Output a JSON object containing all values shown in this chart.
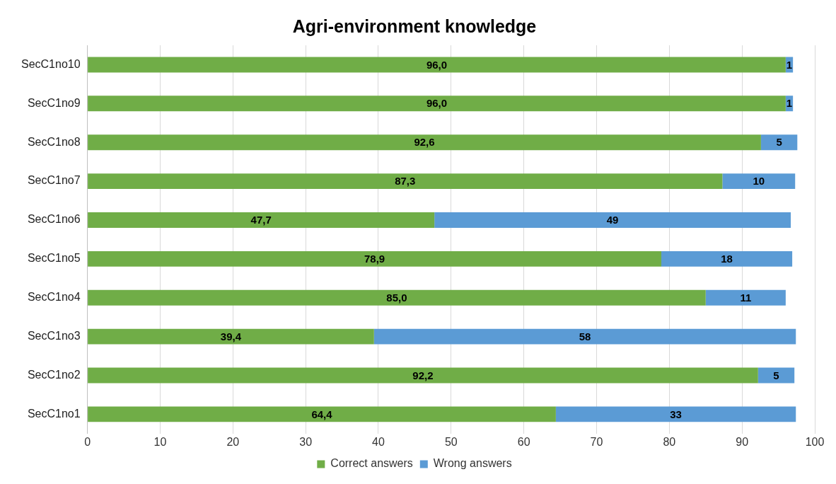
{
  "chart_data": {
    "type": "bar",
    "orientation": "horizontal",
    "stacked": true,
    "title": "Agri-environment knowledge",
    "categories": [
      "SecC1no10",
      "SecC1no9",
      "SecC1no8",
      "SecC1no7",
      "SecC1no6",
      "SecC1no5",
      "SecC1no4",
      "SecC1no3",
      "SecC1no2",
      "SecC1no1"
    ],
    "series": [
      {
        "name": "Correct answers",
        "color": "#70ad47",
        "values": [
          96.0,
          96.0,
          92.6,
          87.3,
          47.7,
          78.9,
          85.0,
          39.4,
          92.2,
          64.4
        ],
        "value_labels": [
          "96,0",
          "96,0",
          "92,6",
          "87,3",
          "47,7",
          "78,9",
          "85,0",
          "39,4",
          "92,2",
          "64,4"
        ]
      },
      {
        "name": "Wrong answers",
        "color": "#5b9bd5",
        "values": [
          1,
          1,
          5,
          10,
          49,
          18,
          11,
          58,
          5,
          33
        ],
        "value_labels": [
          "1",
          "1",
          "5",
          "10",
          "49",
          "18",
          "11",
          "58",
          "5",
          "33"
        ]
      }
    ],
    "xlim": [
      0,
      100
    ],
    "xticks": [
      0,
      10,
      20,
      30,
      40,
      50,
      60,
      70,
      80,
      90,
      100
    ],
    "grid": "x",
    "legend": "bottom"
  }
}
